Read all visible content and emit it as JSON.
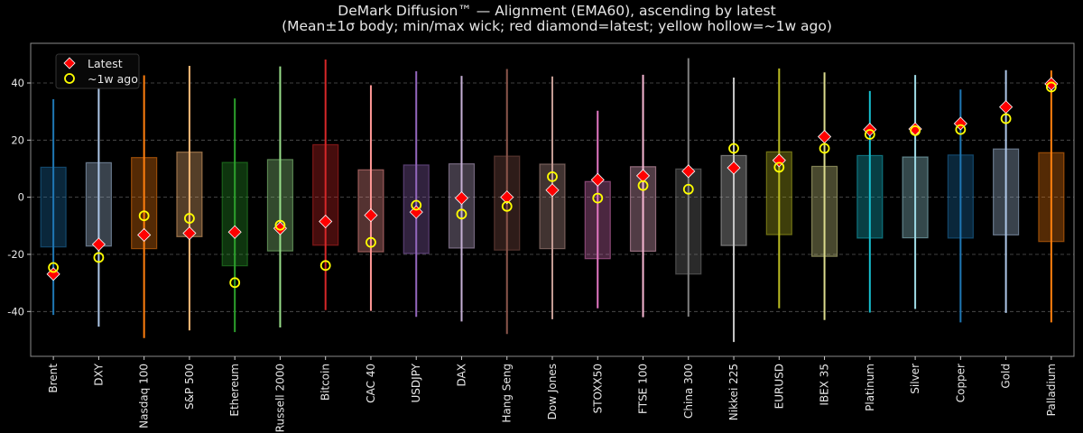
{
  "chart_data": {
    "type": "candlestick-range",
    "title": "DeMark Diffusion™ — Alignment (EMA60), ascending by latest",
    "subtitle": "(Mean±1σ body; min/max wick; red diamond=latest; yellow hollow=~1w ago)",
    "ylim": [
      -55.7,
      53.9
    ],
    "yticks": [
      -40,
      -20,
      0,
      20,
      40
    ],
    "grid": true,
    "legend": {
      "placement": "top-left",
      "entries": [
        "Latest",
        "~1w ago"
      ]
    },
    "colors": {
      "latest": "#ff0000",
      "prev": "#ffff00",
      "background": "#000000"
    },
    "categories": [
      "Brent",
      "DXY",
      "Nasdaq 100",
      "S&P 500",
      "Ethereum",
      "Russell 2000",
      "Bitcoin",
      "CAC 40",
      "USDJPY",
      "DAX",
      "Hang Seng",
      "Dow Jones",
      "STOXX50",
      "FTSE 100",
      "China 300",
      "Nikkei 225",
      "EURUSD",
      "IBEX 35",
      "Platinum",
      "Silver",
      "Copper",
      "Gold",
      "Palladium"
    ],
    "series_colors": [
      "#1f77b4",
      "#aec7e8",
      "#ff7f0e",
      "#ffbb78",
      "#2ca02c",
      "#98df8a",
      "#d62728",
      "#ff9896",
      "#9467bd",
      "#c5b0d5",
      "#8c564b",
      "#c49c94",
      "#e377c2",
      "#f7b6d2",
      "#7f7f7f",
      "#c7c7c7",
      "#bcbd22",
      "#dbdb8d",
      "#17becf",
      "#9edae5",
      "#1f77b4",
      "#aec7e8",
      "#ff7f0e"
    ],
    "mean_plus_sd": [
      10.5,
      12.1,
      13.9,
      15.8,
      12.2,
      13.2,
      18.4,
      9.6,
      11.3,
      11.7,
      14.4,
      11.6,
      5.5,
      10.7,
      9.9,
      14.6,
      15.9,
      10.8,
      14.6,
      14.1,
      14.8,
      16.9,
      15.6
    ],
    "mean_minus_sd": [
      -17.4,
      -17.1,
      -18.0,
      -13.8,
      -24.0,
      -18.8,
      -16.8,
      -19.1,
      -19.7,
      -17.8,
      -18.5,
      -18.0,
      -21.5,
      -18.9,
      -26.9,
      -16.9,
      -13.1,
      -20.7,
      -14.3,
      -14.2,
      -14.3,
      -13.2,
      -15.5
    ],
    "max": [
      34.3,
      39.2,
      42.7,
      46.0,
      34.6,
      45.8,
      48.2,
      39.2,
      44.1,
      42.5,
      44.9,
      42.3,
      30.3,
      42.9,
      48.7,
      41.9,
      45.1,
      43.7,
      37.2,
      42.8,
      37.7,
      44.5,
      44.4
    ],
    "min": [
      -41.2,
      -45.3,
      -49.3,
      -46.6,
      -47.2,
      -45.6,
      -39.5,
      -39.8,
      -41.9,
      -43.5,
      -47.9,
      -42.7,
      -38.9,
      -42.0,
      -41.8,
      -50.7,
      -38.9,
      -43.0,
      -40.4,
      -39.1,
      -43.8,
      -40.5,
      -43.8
    ],
    "latest": [
      -26.9,
      -16.5,
      -13.2,
      -12.6,
      -12.2,
      -10.9,
      -8.5,
      -6.3,
      -5.2,
      -0.3,
      0.0,
      2.5,
      6.1,
      7.5,
      9.1,
      10.3,
      12.9,
      21.2,
      23.7,
      23.9,
      25.8,
      31.6,
      39.7
    ],
    "prev_1w": [
      -24.6,
      -21.1,
      -6.5,
      -7.4,
      -29.9,
      -9.8,
      -23.9,
      -15.8,
      -2.8,
      -5.9,
      -3.2,
      7.2,
      -0.3,
      4.1,
      2.8,
      17.1,
      10.5,
      17.1,
      22.0,
      23.3,
      23.7,
      27.5,
      38.6
    ]
  }
}
